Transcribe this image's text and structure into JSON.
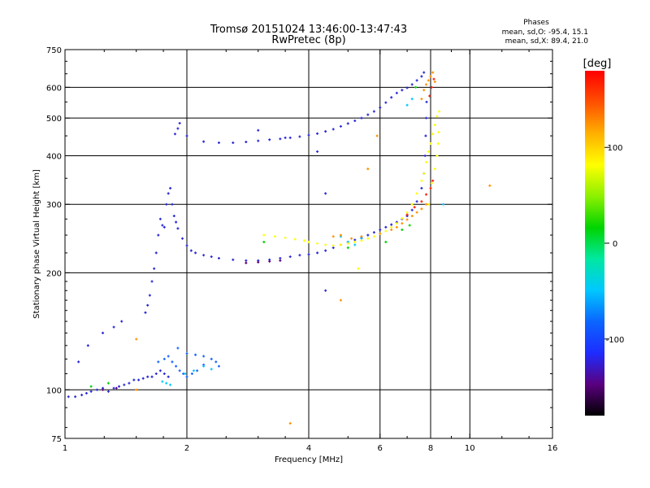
{
  "header": {
    "title": "Tromsø 20151024 13:46:00-13:47:43",
    "subtitle": "RwPretec (8p)"
  },
  "phases_box": {
    "title": "Phases",
    "line_o": "mean, sd,O: -95.4, 15.1",
    "line_x": "mean, sd,X: 89.4, 21.0"
  },
  "colorbar": {
    "unit_label": "[deg]",
    "tick_labels": [
      "100",
      "0",
      "-100"
    ],
    "tick_values": [
      100,
      0,
      -100
    ],
    "range": [
      -180,
      180
    ],
    "colors": [
      "#000000",
      "#5a007f",
      "#1e2cff",
      "#0a66ff",
      "#00c8ff",
      "#00e8a0",
      "#00d400",
      "#8cf000",
      "#ffff00",
      "#ffb000",
      "#ff5000",
      "#ff0000"
    ]
  },
  "chart_data": {
    "type": "scatter",
    "title": "Tromsø 20151024 13:46:00-13:47:43",
    "subtitle": "RwPretec (8p)",
    "xlabel": "Frequency [MHz]",
    "ylabel": "Stationary phase Virtual Height [km]",
    "x_scale": "log2",
    "y_scale": "log",
    "xlim": [
      1,
      16
    ],
    "ylim": [
      75,
      750
    ],
    "x_ticks": [
      1,
      2,
      4,
      6,
      8,
      10,
      16
    ],
    "x_tick_labels": [
      "1",
      "2",
      "4",
      "6",
      "8",
      "10",
      "16"
    ],
    "y_ticks": [
      75,
      100,
      200,
      300,
      400,
      500,
      600,
      750
    ],
    "y_tick_labels": [
      "75",
      "100",
      "200",
      "300",
      "400",
      "500",
      "600",
      "750"
    ],
    "x_gridlines": [
      2,
      4,
      6,
      8,
      10
    ],
    "y_gridlines": [
      100,
      200,
      300,
      400,
      500,
      600
    ],
    "color_variable": "Phase [deg]",
    "series": [
      {
        "color": "#2a2ad8",
        "points": [
          [
            1.02,
            96
          ],
          [
            1.06,
            96
          ],
          [
            1.1,
            97
          ],
          [
            1.13,
            98
          ],
          [
            1.16,
            99
          ],
          [
            1.2,
            100
          ],
          [
            1.24,
            101
          ],
          [
            1.28,
            99
          ],
          [
            1.32,
            101
          ],
          [
            1.36,
            102
          ],
          [
            1.4,
            103
          ],
          [
            1.44,
            104
          ],
          [
            1.48,
            106
          ],
          [
            1.52,
            106
          ],
          [
            1.56,
            107
          ],
          [
            1.6,
            108
          ],
          [
            1.64,
            108
          ],
          [
            1.68,
            110
          ],
          [
            1.72,
            112
          ],
          [
            1.76,
            110
          ],
          [
            1.8,
            108
          ],
          [
            1.08,
            118
          ],
          [
            1.14,
            130
          ],
          [
            1.24,
            140
          ],
          [
            1.32,
            145
          ],
          [
            1.38,
            150
          ],
          [
            1.58,
            158
          ],
          [
            1.6,
            165
          ],
          [
            1.62,
            175
          ],
          [
            1.64,
            190
          ],
          [
            1.66,
            205
          ],
          [
            1.68,
            225
          ],
          [
            1.7,
            250
          ],
          [
            1.72,
            275
          ],
          [
            1.74,
            265
          ],
          [
            1.76,
            262
          ],
          [
            1.78,
            300
          ],
          [
            1.8,
            320
          ],
          [
            1.82,
            330
          ],
          [
            1.84,
            300
          ],
          [
            1.86,
            280
          ],
          [
            1.88,
            270
          ],
          [
            1.9,
            260
          ],
          [
            1.95,
            245
          ],
          [
            2.0,
            235
          ],
          [
            2.05,
            228
          ],
          [
            2.1,
            225
          ],
          [
            2.2,
            222
          ],
          [
            2.3,
            220
          ],
          [
            2.4,
            218
          ],
          [
            2.6,
            216
          ],
          [
            2.8,
            215
          ],
          [
            3.0,
            215
          ],
          [
            3.2,
            216
          ],
          [
            3.4,
            218
          ],
          [
            3.6,
            220
          ],
          [
            3.8,
            222
          ],
          [
            4.0,
            223
          ],
          [
            4.2,
            225
          ],
          [
            4.4,
            228
          ],
          [
            4.6,
            232
          ],
          [
            4.8,
            236
          ],
          [
            5.0,
            240
          ],
          [
            5.2,
            243
          ],
          [
            5.4,
            246
          ],
          [
            5.6,
            250
          ],
          [
            5.8,
            254
          ],
          [
            6.0,
            258
          ],
          [
            6.2,
            262
          ],
          [
            6.4,
            266
          ],
          [
            6.6,
            270
          ],
          [
            6.8,
            275
          ],
          [
            7.0,
            280
          ],
          [
            7.2,
            290
          ],
          [
            7.4,
            305
          ],
          [
            7.6,
            330
          ],
          [
            7.7,
            360
          ],
          [
            7.75,
            400
          ],
          [
            7.78,
            450
          ],
          [
            7.8,
            500
          ],
          [
            7.82,
            550
          ],
          [
            1.87,
            455
          ],
          [
            1.9,
            470
          ],
          [
            1.92,
            485
          ],
          [
            2.0,
            450
          ],
          [
            2.2,
            435
          ],
          [
            2.4,
            432
          ],
          [
            2.6,
            432
          ],
          [
            2.8,
            434
          ],
          [
            3.0,
            437
          ],
          [
            3.2,
            440
          ],
          [
            3.4,
            442
          ],
          [
            3.6,
            445
          ],
          [
            3.8,
            448
          ],
          [
            4.0,
            452
          ],
          [
            4.2,
            456
          ],
          [
            4.4,
            462
          ],
          [
            4.6,
            468
          ],
          [
            4.8,
            476
          ],
          [
            5.0,
            484
          ],
          [
            5.2,
            492
          ],
          [
            5.4,
            500
          ],
          [
            5.6,
            510
          ],
          [
            5.8,
            520
          ],
          [
            6.0,
            532
          ],
          [
            6.2,
            548
          ],
          [
            6.4,
            565
          ],
          [
            6.6,
            580
          ],
          [
            6.8,
            590
          ],
          [
            7.0,
            598
          ],
          [
            7.2,
            610
          ],
          [
            7.4,
            625
          ],
          [
            7.6,
            640
          ],
          [
            7.7,
            655
          ],
          [
            3.0,
            465
          ],
          [
            3.5,
            445
          ],
          [
            4.2,
            410
          ],
          [
            4.4,
            320
          ],
          [
            4.4,
            180
          ]
        ]
      },
      {
        "color": "#1a66ff",
        "points": [
          [
            1.7,
            118
          ],
          [
            1.76,
            120
          ],
          [
            1.8,
            122
          ],
          [
            1.84,
            118
          ],
          [
            1.88,
            115
          ],
          [
            1.92,
            112
          ],
          [
            1.96,
            110
          ],
          [
            2.0,
            108
          ],
          [
            2.06,
            110
          ],
          [
            2.12,
            112
          ],
          [
            2.2,
            116
          ],
          [
            2.3,
            120
          ],
          [
            2.36,
            118
          ],
          [
            2.4,
            115
          ],
          [
            1.9,
            128
          ],
          [
            2.0,
            124
          ],
          [
            2.1,
            123
          ],
          [
            2.2,
            122
          ]
        ]
      },
      {
        "color": "#00c8ff",
        "points": [
          [
            1.74,
            105
          ],
          [
            1.78,
            104
          ],
          [
            1.82,
            103
          ],
          [
            1.98,
            110
          ],
          [
            2.08,
            112
          ],
          [
            2.2,
            115
          ],
          [
            2.3,
            113
          ],
          [
            4.8,
            248
          ],
          [
            5.0,
            240
          ],
          [
            5.2,
            236
          ],
          [
            5.4,
            245
          ],
          [
            7.0,
            540
          ],
          [
            7.2,
            560
          ],
          [
            8.6,
            300
          ]
        ]
      },
      {
        "color": "#00d400",
        "points": [
          [
            1.16,
            102
          ],
          [
            1.28,
            104
          ],
          [
            3.1,
            240
          ],
          [
            5.0,
            232
          ],
          [
            6.2,
            240
          ],
          [
            6.8,
            258
          ],
          [
            7.1,
            265
          ],
          [
            7.35,
            600
          ]
        ]
      },
      {
        "color": "#ffff00",
        "points": [
          [
            3.1,
            250
          ],
          [
            3.3,
            248
          ],
          [
            3.5,
            246
          ],
          [
            3.7,
            244
          ],
          [
            3.9,
            242
          ],
          [
            4.0,
            240
          ],
          [
            4.2,
            238
          ],
          [
            4.4,
            236
          ],
          [
            4.6,
            235
          ],
          [
            4.8,
            236
          ],
          [
            5.0,
            238
          ],
          [
            5.2,
            240
          ],
          [
            5.4,
            242
          ],
          [
            5.6,
            245
          ],
          [
            5.8,
            248
          ],
          [
            6.0,
            252
          ],
          [
            6.2,
            256
          ],
          [
            6.4,
            262
          ],
          [
            6.6,
            268
          ],
          [
            6.8,
            276
          ],
          [
            7.0,
            286
          ],
          [
            7.2,
            300
          ],
          [
            7.4,
            320
          ],
          [
            7.6,
            345
          ],
          [
            7.7,
            360
          ],
          [
            7.8,
            385
          ],
          [
            7.9,
            410
          ],
          [
            8.0,
            430
          ],
          [
            8.1,
            455
          ],
          [
            8.2,
            480
          ],
          [
            8.3,
            505
          ],
          [
            8.4,
            520
          ],
          [
            7.92,
            300
          ],
          [
            8.05,
            340
          ],
          [
            8.2,
            370
          ],
          [
            8.3,
            400
          ],
          [
            8.35,
            430
          ],
          [
            8.38,
            460
          ],
          [
            5.3,
            205
          ]
        ]
      },
      {
        "color": "#ff9000",
        "points": [
          [
            1.5,
            135
          ],
          [
            4.6,
            248
          ],
          [
            4.8,
            250
          ],
          [
            5.1,
            245
          ],
          [
            5.4,
            248
          ],
          [
            6.0,
            252
          ],
          [
            6.4,
            258
          ],
          [
            6.6,
            262
          ],
          [
            6.8,
            268
          ],
          [
            7.0,
            274
          ],
          [
            7.2,
            280
          ],
          [
            7.4,
            286
          ],
          [
            7.6,
            292
          ],
          [
            7.8,
            300
          ],
          [
            7.6,
            560
          ],
          [
            7.7,
            590
          ],
          [
            7.8,
            610
          ],
          [
            7.9,
            625
          ],
          [
            8.0,
            640
          ],
          [
            8.1,
            655
          ],
          [
            8.2,
            620
          ],
          [
            5.6,
            370
          ],
          [
            5.9,
            450
          ],
          [
            4.8,
            170
          ],
          [
            3.6,
            82
          ],
          [
            11.2,
            335
          ],
          [
            1.5,
            100
          ]
        ]
      },
      {
        "color": "#ff2000",
        "points": [
          [
            7.0,
            282
          ],
          [
            7.3,
            295
          ],
          [
            7.6,
            305
          ],
          [
            7.8,
            318
          ],
          [
            8.0,
            330
          ],
          [
            8.1,
            345
          ],
          [
            7.95,
            570
          ],
          [
            8.05,
            600
          ],
          [
            8.15,
            630
          ]
        ]
      },
      {
        "color": "#5a007f",
        "points": [
          [
            2.8,
            212
          ],
          [
            3.0,
            213
          ],
          [
            3.2,
            214
          ],
          [
            3.4,
            215
          ],
          [
            1.24,
            100
          ],
          [
            1.34,
            101
          ]
        ]
      }
    ]
  }
}
